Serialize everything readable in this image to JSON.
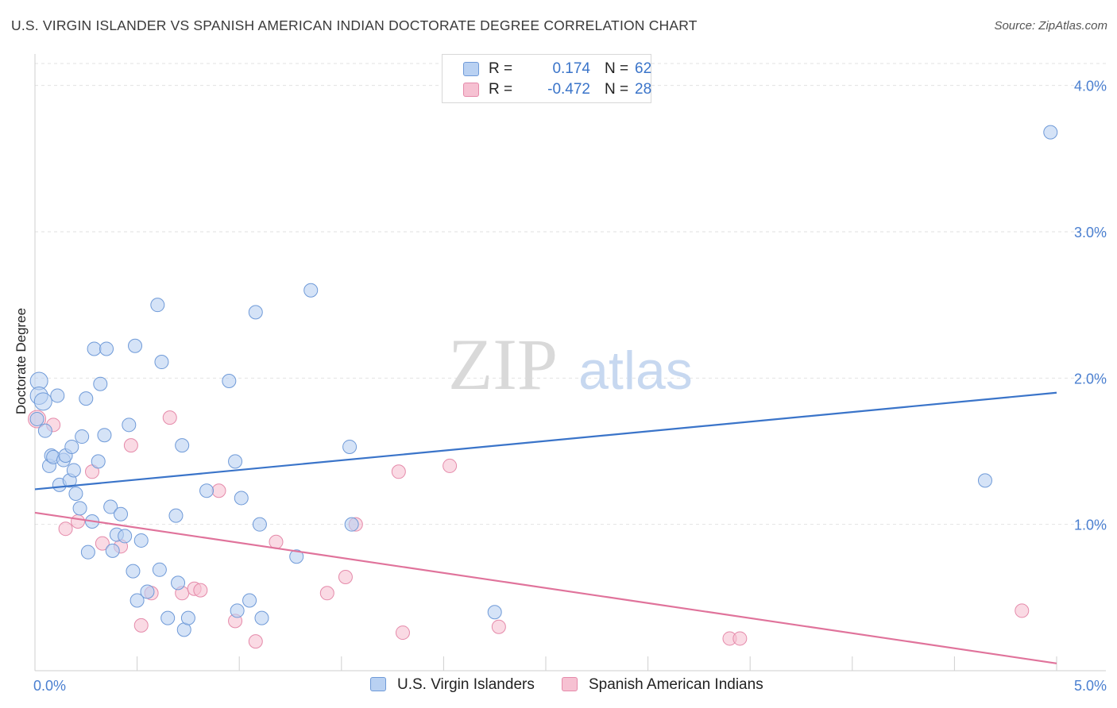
{
  "header": {
    "title": "U.S. VIRGIN ISLANDER VS SPANISH AMERICAN INDIAN DOCTORATE DEGREE CORRELATION CHART",
    "source": "Source: ZipAtlas.com"
  },
  "watermark": {
    "zip": "ZIP",
    "atlas": "atlas"
  },
  "legend": {
    "r_label": "R =",
    "n_label": "N =",
    "rows": [
      {
        "r": "0.174",
        "n": "62"
      },
      {
        "r": "-0.472",
        "n": "28"
      }
    ]
  },
  "chart_data": {
    "type": "scatter",
    "title": "U.S. VIRGIN ISLANDER VS SPANISH AMERICAN INDIAN DOCTORATE DEGREE CORRELATION CHART",
    "ylabel": "Doctorate Degree",
    "xlabel": "",
    "xlim": [
      0,
      5
    ],
    "ylim": [
      0,
      4.15
    ],
    "x_tick_labels": [
      "0.0%",
      "5.0%"
    ],
    "y_ticks": [
      1,
      2,
      3,
      4
    ],
    "y_tick_labels": [
      "1.0%",
      "2.0%",
      "3.0%",
      "4.0%"
    ],
    "grid": true,
    "legend_position": "top-center",
    "colors": {
      "blue": "#3a74c9",
      "blue_fill": "#b9d1f2",
      "pink": "#e0739b",
      "pink_fill": "#f6c1d2",
      "axis_text": "#4a7fd0"
    },
    "series": [
      {
        "name": "U.S. Virgin Islanders",
        "r": 0.174,
        "n": 62,
        "trend": {
          "x": [
            0,
            5
          ],
          "y": [
            1.24,
            1.9
          ]
        },
        "points": [
          [
            0.02,
            1.98
          ],
          [
            0.02,
            1.88
          ],
          [
            0.04,
            1.84
          ],
          [
            0.05,
            1.64
          ],
          [
            0.07,
            1.4
          ],
          [
            0.08,
            1.47
          ],
          [
            0.09,
            1.46
          ],
          [
            0.11,
            1.88
          ],
          [
            0.12,
            1.27
          ],
          [
            0.14,
            1.44
          ],
          [
            0.15,
            1.47
          ],
          [
            0.17,
            1.3
          ],
          [
            0.18,
            1.53
          ],
          [
            0.19,
            1.37
          ],
          [
            0.2,
            1.21
          ],
          [
            0.22,
            1.11
          ],
          [
            0.23,
            1.6
          ],
          [
            0.25,
            1.86
          ],
          [
            0.26,
            0.81
          ],
          [
            0.28,
            1.02
          ],
          [
            0.29,
            2.2
          ],
          [
            0.31,
            1.43
          ],
          [
            0.32,
            1.96
          ],
          [
            0.34,
            1.61
          ],
          [
            0.35,
            2.2
          ],
          [
            0.37,
            1.12
          ],
          [
            0.38,
            0.82
          ],
          [
            0.4,
            0.93
          ],
          [
            0.42,
            1.07
          ],
          [
            0.44,
            0.92
          ],
          [
            0.46,
            1.68
          ],
          [
            0.48,
            0.68
          ],
          [
            0.49,
            2.22
          ],
          [
            0.5,
            0.48
          ],
          [
            0.52,
            0.89
          ],
          [
            0.55,
            0.54
          ],
          [
            0.6,
            2.5
          ],
          [
            0.61,
            0.69
          ],
          [
            0.62,
            2.11
          ],
          [
            0.65,
            0.36
          ],
          [
            0.69,
            1.06
          ],
          [
            0.7,
            0.6
          ],
          [
            0.72,
            1.54
          ],
          [
            0.73,
            0.28
          ],
          [
            0.75,
            0.36
          ],
          [
            0.84,
            1.23
          ],
          [
            0.95,
            1.98
          ],
          [
            0.98,
            1.43
          ],
          [
            0.99,
            0.41
          ],
          [
            1.01,
            1.18
          ],
          [
            1.05,
            0.48
          ],
          [
            1.08,
            2.45
          ],
          [
            1.1,
            1.0
          ],
          [
            1.11,
            0.36
          ],
          [
            1.28,
            0.78
          ],
          [
            1.35,
            2.6
          ],
          [
            1.55,
            1.0
          ],
          [
            1.54,
            1.53
          ],
          [
            2.25,
            0.4
          ],
          [
            4.65,
            1.3
          ],
          [
            4.97,
            3.68
          ],
          [
            0.01,
            1.72
          ]
        ]
      },
      {
        "name": "Spanish American Indians",
        "r": -0.472,
        "n": 28,
        "trend": {
          "x": [
            0,
            5
          ],
          "y": [
            1.08,
            0.05
          ]
        },
        "points": [
          [
            0.01,
            1.72
          ],
          [
            0.09,
            1.68
          ],
          [
            0.15,
            0.97
          ],
          [
            0.21,
            1.02
          ],
          [
            0.28,
            1.36
          ],
          [
            0.33,
            0.87
          ],
          [
            0.42,
            0.85
          ],
          [
            0.47,
            1.54
          ],
          [
            0.52,
            0.31
          ],
          [
            0.57,
            0.53
          ],
          [
            0.66,
            1.73
          ],
          [
            0.72,
            0.53
          ],
          [
            0.78,
            0.56
          ],
          [
            0.81,
            0.55
          ],
          [
            0.9,
            1.23
          ],
          [
            0.98,
            0.34
          ],
          [
            1.08,
            0.2
          ],
          [
            1.18,
            0.88
          ],
          [
            1.43,
            0.53
          ],
          [
            1.52,
            0.64
          ],
          [
            1.57,
            1.0
          ],
          [
            1.78,
            1.36
          ],
          [
            1.8,
            0.26
          ],
          [
            2.03,
            1.4
          ],
          [
            2.27,
            0.3
          ],
          [
            3.4,
            0.22
          ],
          [
            3.45,
            0.22
          ],
          [
            4.83,
            0.41
          ]
        ]
      }
    ]
  }
}
